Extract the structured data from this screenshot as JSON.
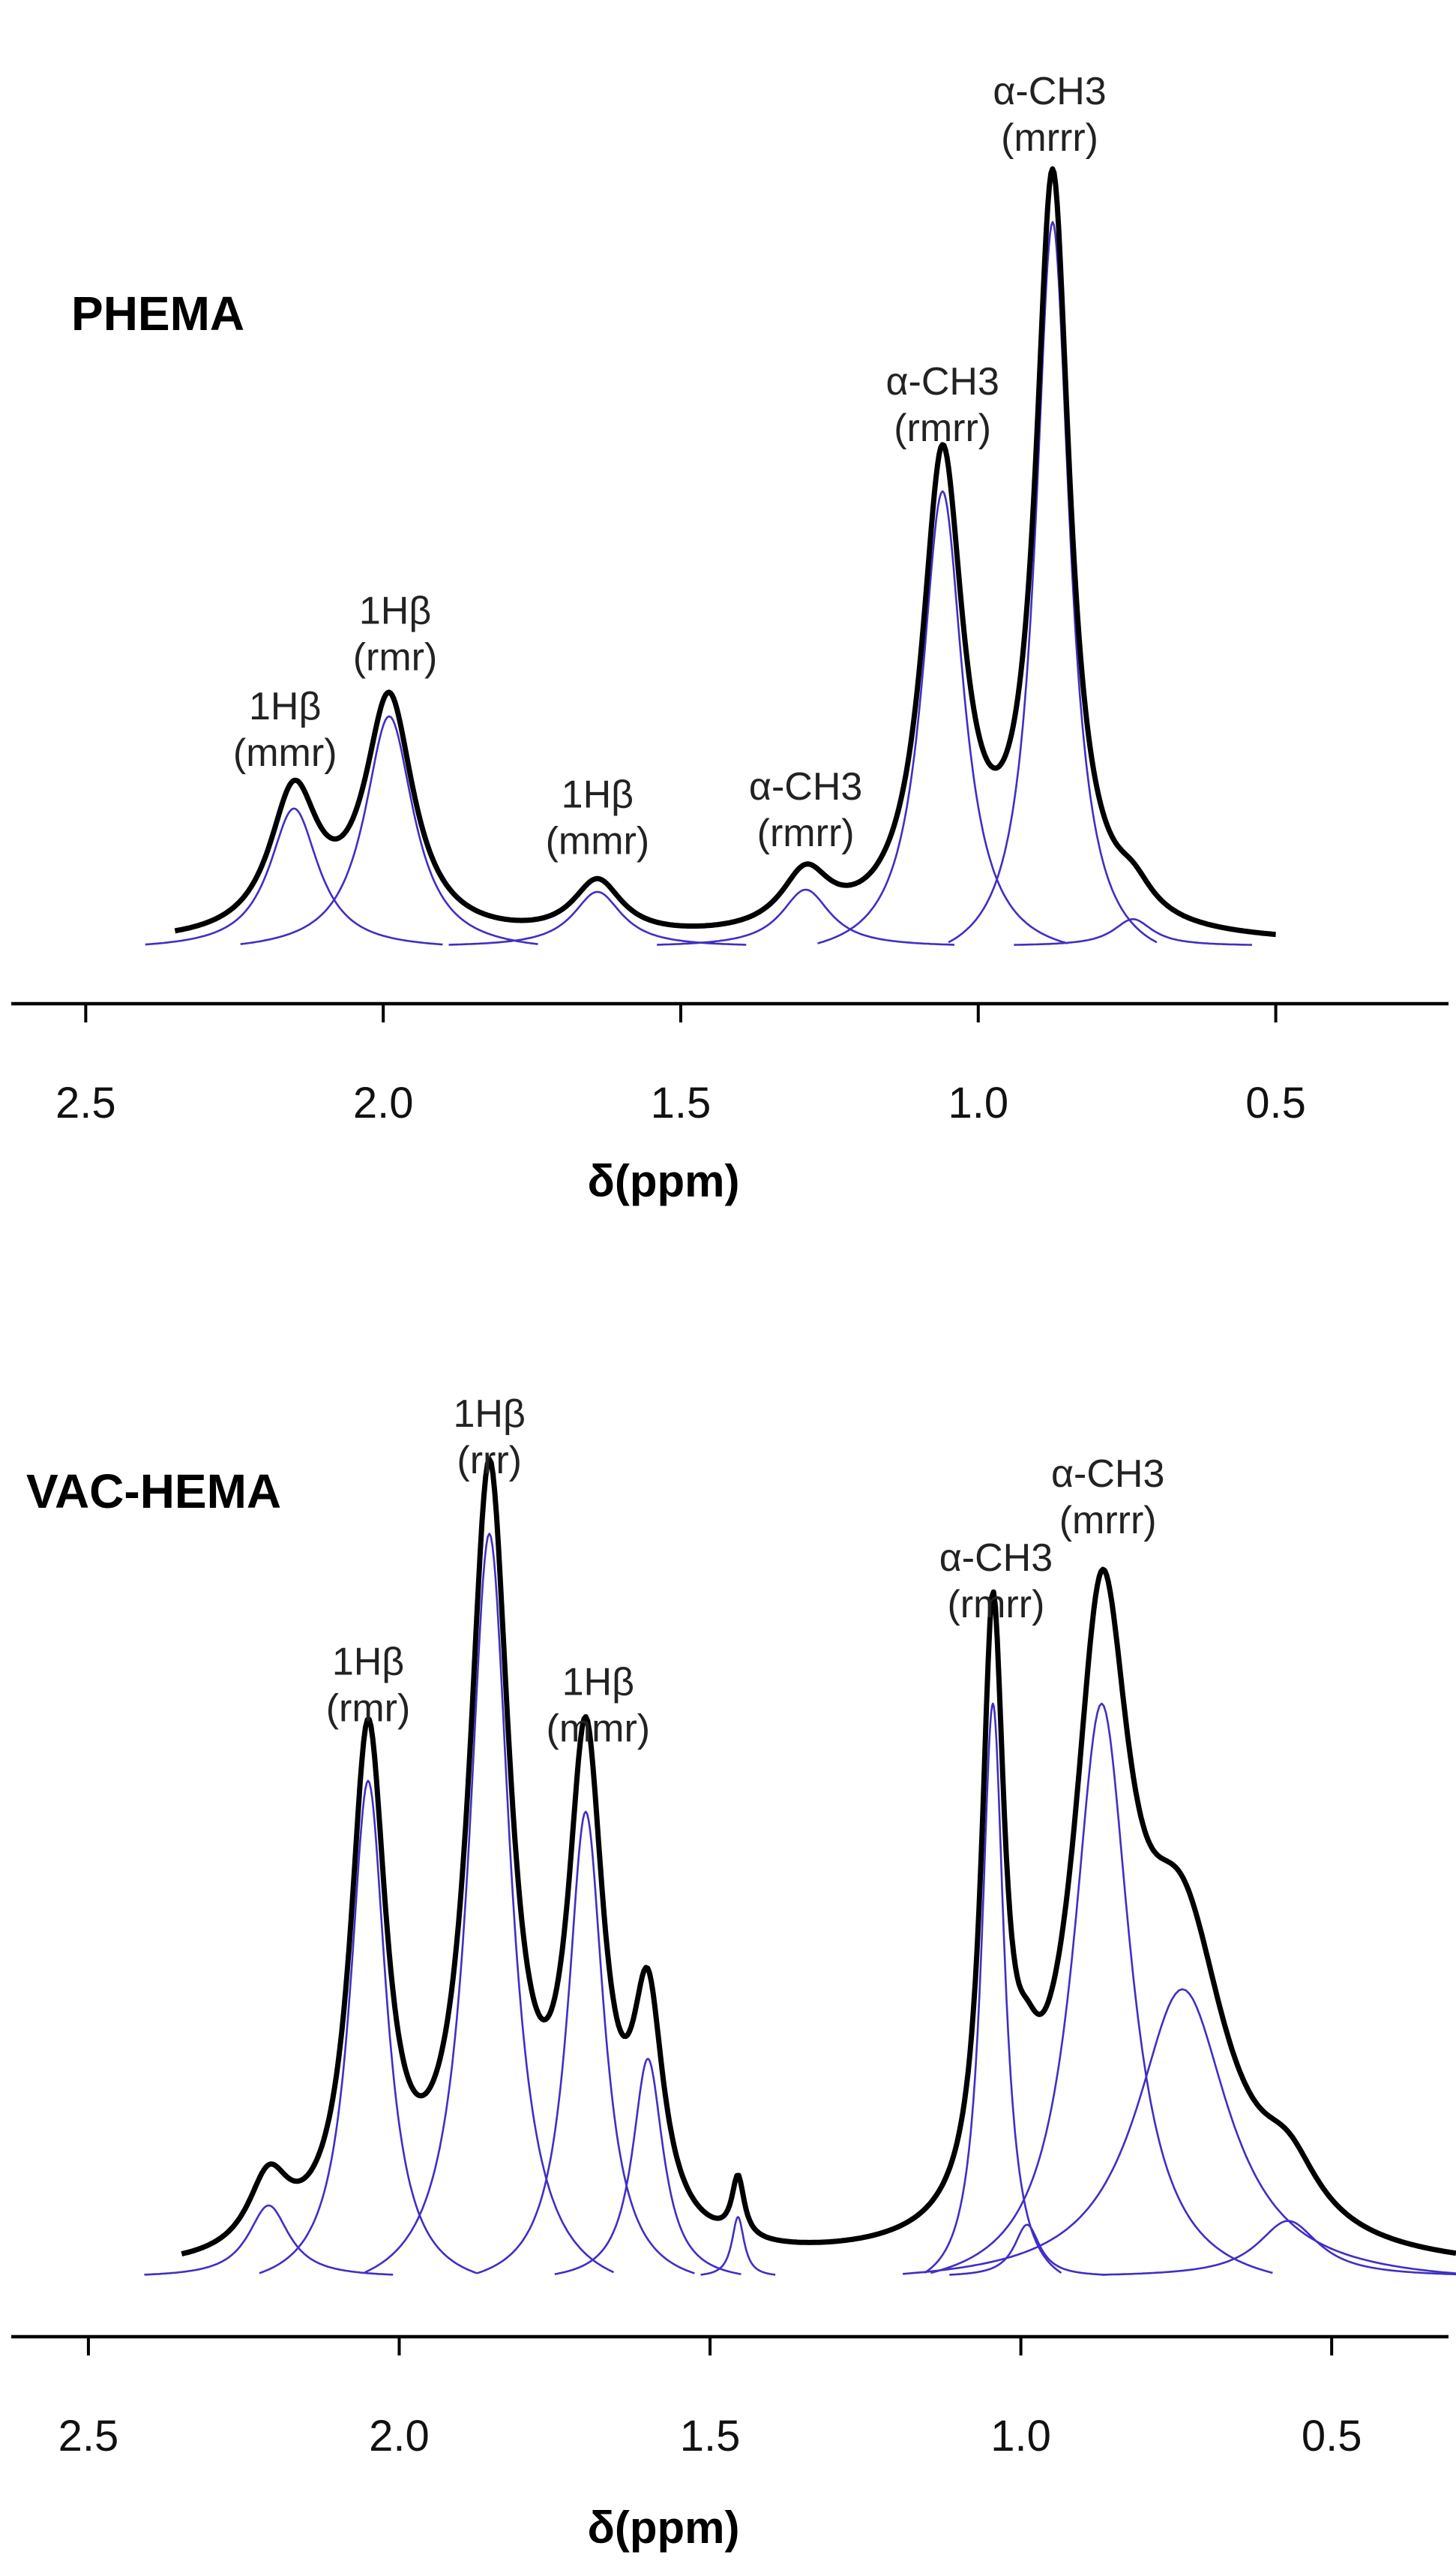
{
  "chart_data": [
    {
      "type": "line",
      "title": "PHEMA",
      "xlabel": "δ(ppm)",
      "ylabel": "",
      "xlim": [
        2.6,
        0.25
      ],
      "x_reversed": true,
      "ylim": [
        0,
        1.05
      ],
      "grid": false,
      "x_ticks": [
        "2.5",
        "2.0",
        "1.5",
        "1.0",
        "0.5"
      ],
      "x_tick_values": [
        2.5,
        2.0,
        1.5,
        1.0,
        0.5
      ],
      "sum_range": [
        2.35,
        0.5
      ],
      "baseline": 0.015,
      "colors": {
        "sum": "#000000",
        "components": "#3f2fc4"
      },
      "components": [
        {
          "center": 2.15,
          "height": 0.185,
          "width": 0.05
        },
        {
          "center": 1.99,
          "height": 0.31,
          "width": 0.05
        },
        {
          "center": 1.64,
          "height": 0.072,
          "width": 0.05
        },
        {
          "center": 1.29,
          "height": 0.075,
          "width": 0.05
        },
        {
          "center": 1.06,
          "height": 0.615,
          "width": 0.042
        },
        {
          "center": 0.875,
          "height": 0.98,
          "width": 0.035
        },
        {
          "center": 0.74,
          "height": 0.035,
          "width": 0.04
        }
      ],
      "annotations": [
        {
          "lines": [
            "1Hβ",
            "(mmr)"
          ],
          "x": 2.165,
          "y": 0.31
        },
        {
          "lines": [
            "1Hβ",
            "(rmr)"
          ],
          "x": 1.98,
          "y": 0.435
        },
        {
          "lines": [
            "1Hβ",
            "(mmr)"
          ],
          "x": 1.64,
          "y": 0.195
        },
        {
          "lines": [
            "α-CH3",
            "(rmrr)"
          ],
          "x": 1.29,
          "y": 0.205
        },
        {
          "lines": [
            "α-CH3",
            "(rmrr)"
          ],
          "x": 1.06,
          "y": 0.735
        },
        {
          "lines": [
            "α-CH3",
            "(mrrr)"
          ],
          "x": 0.88,
          "y": 1.115
        }
      ]
    },
    {
      "type": "line",
      "title": "VAC-HEMA",
      "xlabel": "δ(ppm)",
      "ylabel": "",
      "xlim": [
        2.6,
        0.3
      ],
      "x_reversed": true,
      "ylim": [
        0,
        1.05
      ],
      "grid": false,
      "x_ticks": [
        "2.5",
        "2.0",
        "1.5",
        "1.0",
        "0.5"
      ],
      "x_tick_values": [
        2.5,
        2.0,
        1.5,
        1.0,
        0.5
      ],
      "sum_range": [
        2.35,
        0.3
      ],
      "baseline": 0.035,
      "colors": {
        "sum": "#000000",
        "components": "#3f2fc4"
      },
      "components": [
        {
          "center": 2.21,
          "height": 0.09,
          "width": 0.04
        },
        {
          "center": 2.05,
          "height": 0.64,
          "width": 0.035
        },
        {
          "center": 1.855,
          "height": 0.96,
          "width": 0.04
        },
        {
          "center": 1.7,
          "height": 0.6,
          "width": 0.035
        },
        {
          "center": 1.6,
          "height": 0.28,
          "width": 0.03
        },
        {
          "center": 1.455,
          "height": 0.075,
          "width": 0.012
        },
        {
          "center": 1.045,
          "height": 0.74,
          "width": 0.022
        },
        {
          "center": 0.99,
          "height": 0.065,
          "width": 0.025
        },
        {
          "center": 0.87,
          "height": 0.74,
          "width": 0.055
        },
        {
          "center": 0.74,
          "height": 0.37,
          "width": 0.09
        },
        {
          "center": 0.57,
          "height": 0.07,
          "width": 0.06
        }
      ],
      "annotations": [
        {
          "lines": [
            "1Hβ",
            "(rmr)"
          ],
          "x": 2.05,
          "y": 0.785
        },
        {
          "lines": [
            "1Hβ",
            "(rrr)"
          ],
          "x": 1.855,
          "y": 1.095
        },
        {
          "lines": [
            "1Hβ",
            "(mmr)"
          ],
          "x": 1.68,
          "y": 0.76
        },
        {
          "lines": [
            "α-CH3",
            "(rmrr)"
          ],
          "x": 1.04,
          "y": 0.915
        },
        {
          "lines": [
            "α-CH3",
            "(mrrr)"
          ],
          "x": 0.86,
          "y": 1.02
        }
      ]
    }
  ]
}
